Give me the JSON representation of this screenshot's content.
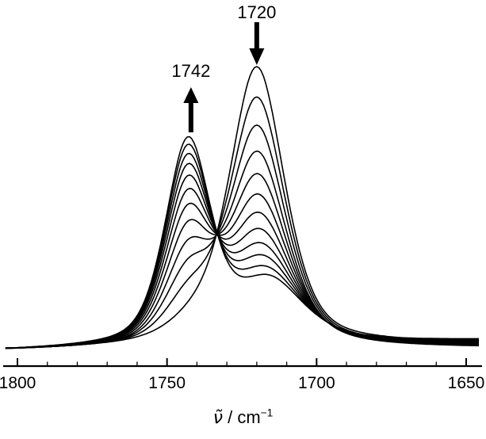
{
  "figure": {
    "background": "#ffffff"
  },
  "chart_data": {
    "type": "line",
    "title": "",
    "xlabel_symbol": "ν̃",
    "xlabel_rest": " / cm",
    "xlabel_sup": "−1",
    "x_axis": {
      "label": "ν̃ / cm⁻¹",
      "min": 1650,
      "max": 1800,
      "reversed": true,
      "major_ticks": [
        "1800",
        "1750",
        "1700",
        "1650"
      ],
      "major_tick_values": [
        1800,
        1750,
        1700,
        1650
      ],
      "minor_tick_step": 10
    },
    "y_axis": {
      "visible": false,
      "min": 0,
      "max": 1.1
    },
    "line_color": "#000000",
    "n_spectra": 12,
    "series_progress": [
      0,
      0.14,
      0.27,
      0.39,
      0.5,
      0.6,
      0.69,
      0.77,
      0.84,
      0.9,
      0.955,
      1.0
    ],
    "band_model": {
      "initial_spectrum_peaks": [
        {
          "center": 1720,
          "amplitude": 1.0,
          "hwhm": 11,
          "lorentz_fraction": 0.5
        },
        {
          "center": 1742,
          "amplitude": 0.05,
          "hwhm": 10,
          "lorentz_fraction": 0.5
        }
      ],
      "final_spectrum_peaks": [
        {
          "center": 1743,
          "amplitude": 0.72,
          "hwhm": 9,
          "lorentz_fraction": 0.45
        },
        {
          "center": 1716,
          "amplitude": 0.22,
          "hwhm": 14,
          "lorentz_fraction": 0.6
        }
      ],
      "baseline": {
        "left": 0.012,
        "right_base": 0.008,
        "right_spread": 0.045,
        "spread_center": 0.4
      }
    },
    "annotations": [
      {
        "label": "1742",
        "wavenumber": 1742,
        "arrow_direction": "up"
      },
      {
        "label": "1720",
        "wavenumber": 1720,
        "arrow_direction": "down"
      }
    ],
    "isosbestic_point_wavenumber": 1733
  }
}
